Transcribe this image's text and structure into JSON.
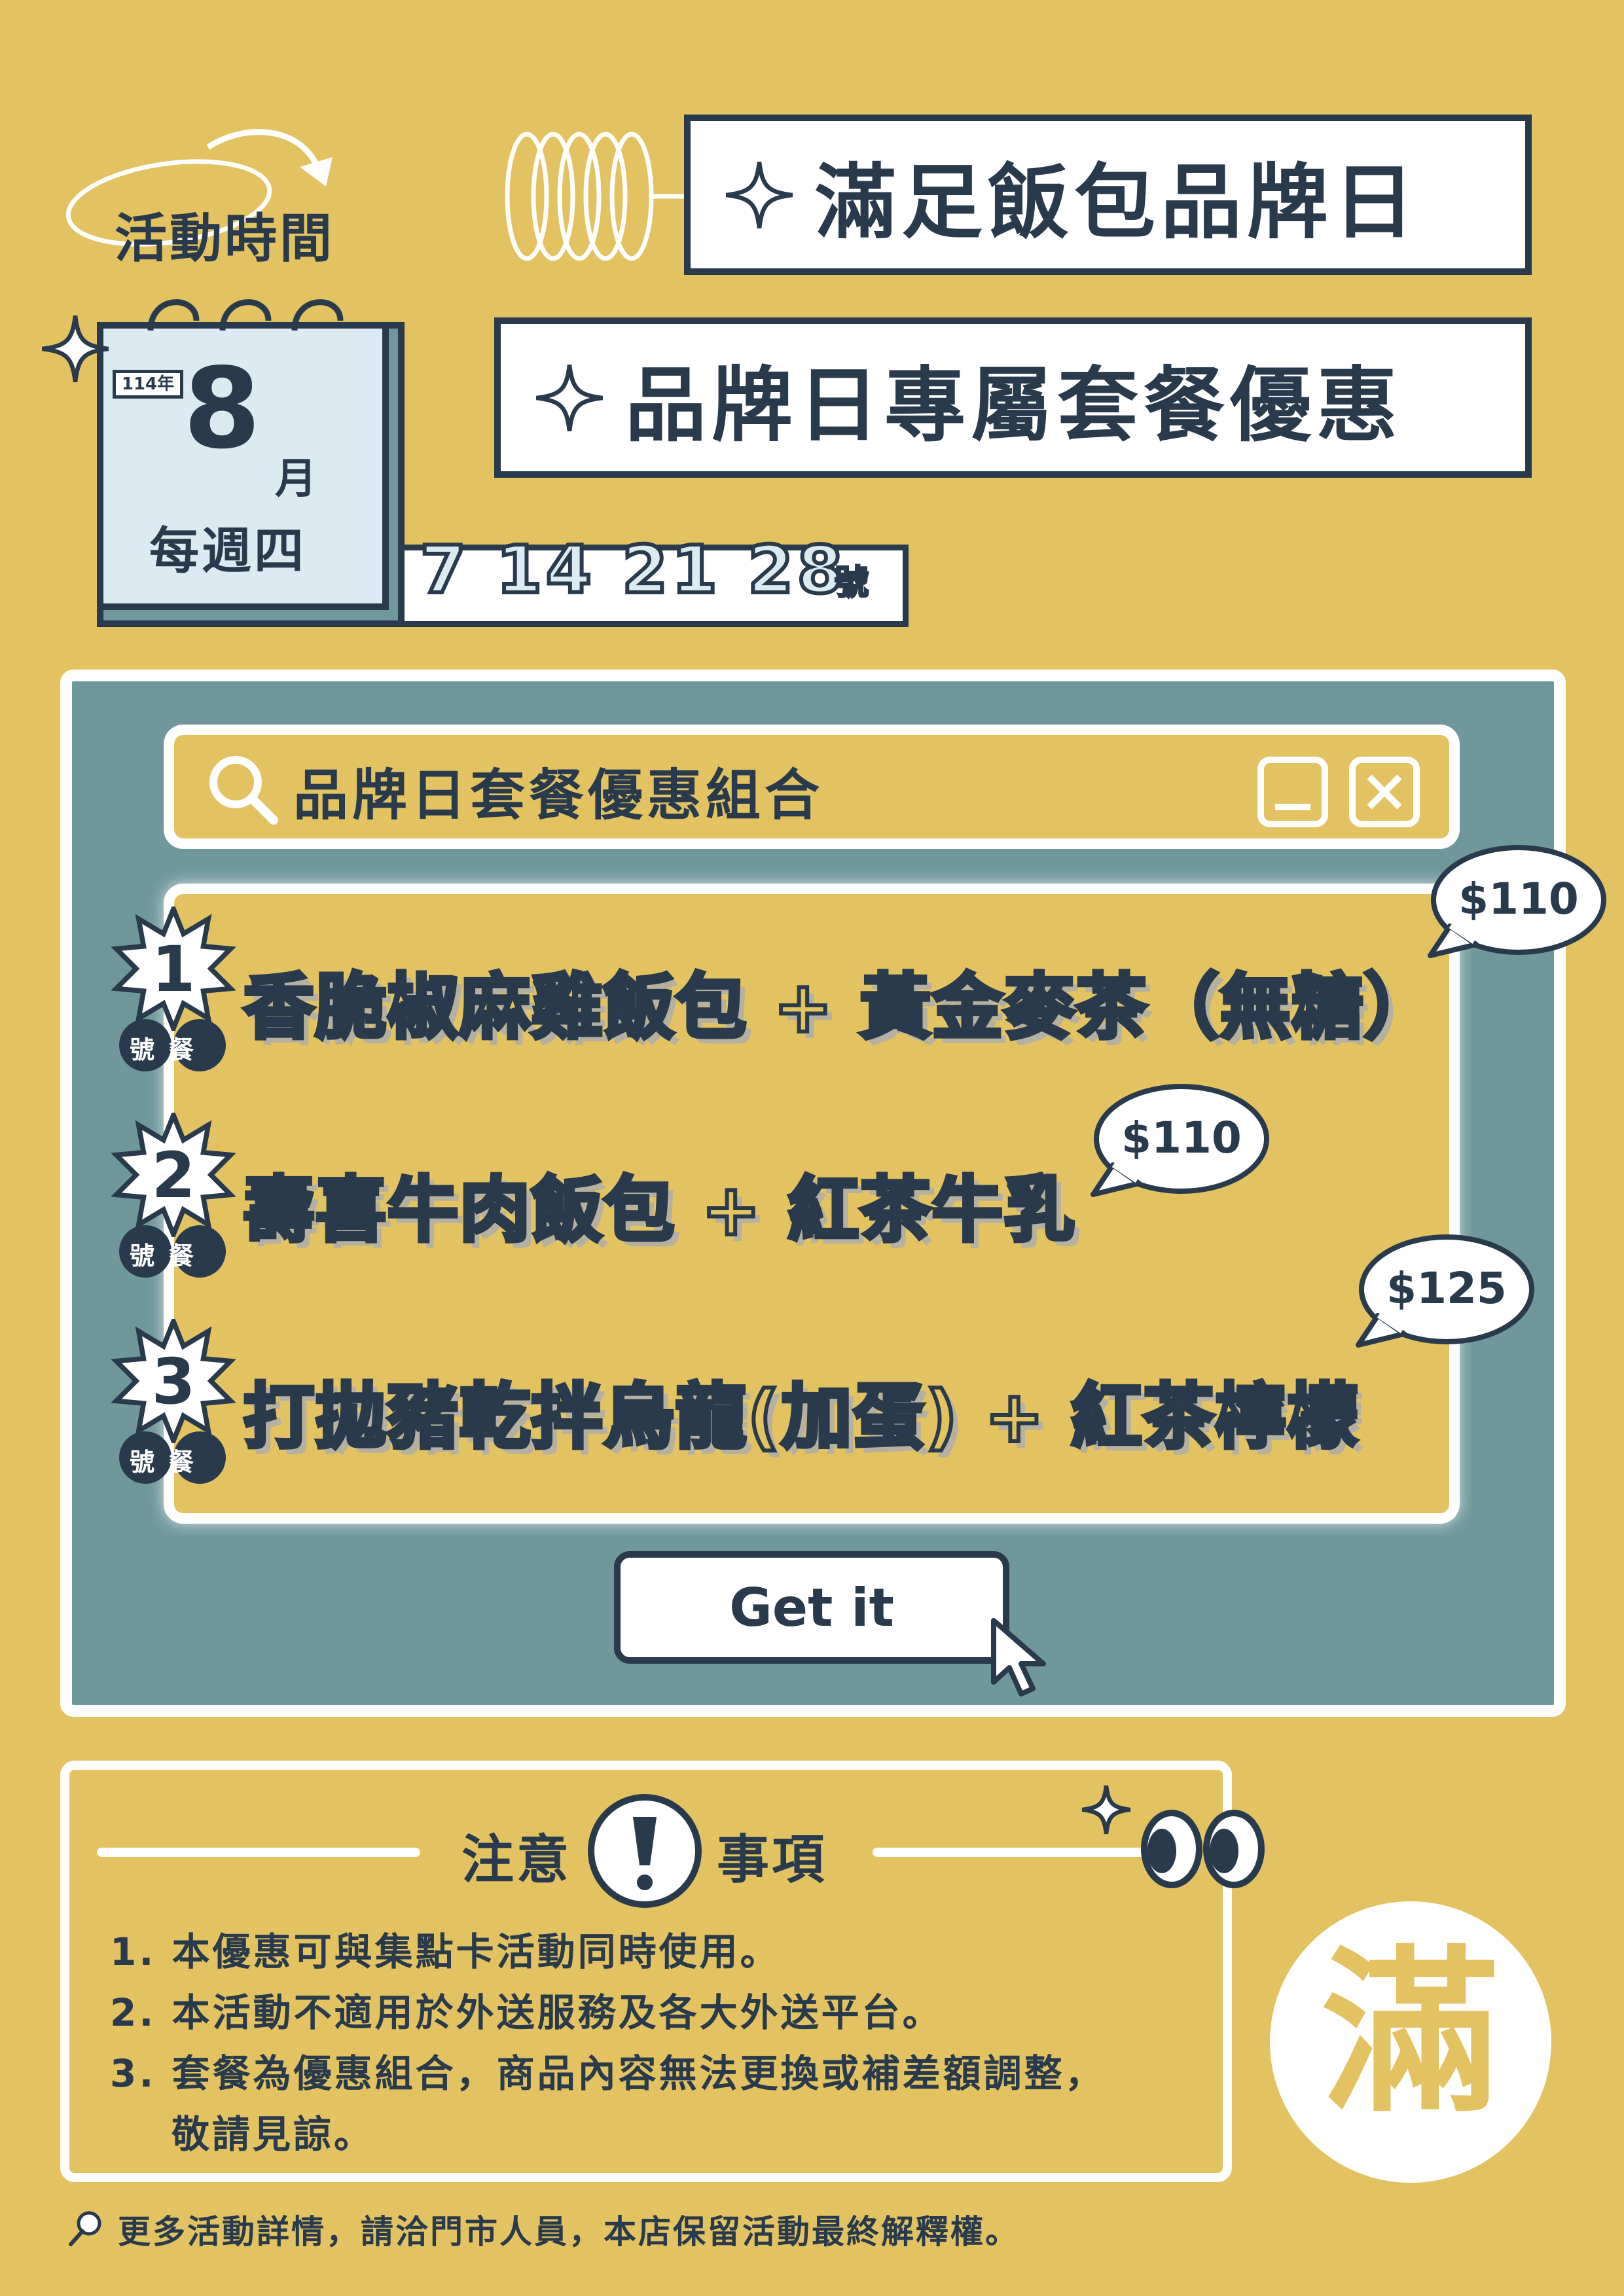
{
  "header": {
    "title_main": "滿足飯包品牌日",
    "title_sub": "品牌日專屬套餐優惠"
  },
  "event": {
    "label": "活動時間",
    "year": "114年",
    "month_number": "8",
    "month_unit": "月",
    "weekday": "每週四",
    "dates": "7 14 21 28",
    "dates_unit": "號"
  },
  "panel": {
    "search_label": "品牌日套餐優惠組合",
    "sets": [
      {
        "number": "1",
        "label": "號餐",
        "item": "香脆椒麻雞飯包 + 黃金麥茶（無糖）",
        "price": "$110"
      },
      {
        "number": "2",
        "label": "號餐",
        "item": "壽喜牛肉飯包 + 紅茶牛乳",
        "price": "$110"
      },
      {
        "number": "3",
        "label": "號餐",
        "item": "打拋豬乾拌烏龍(加蛋) + 紅茶檸檬",
        "price": "$125"
      }
    ],
    "button_label": "Get it"
  },
  "notes": {
    "heading_left": "注意",
    "heading_right": "事項",
    "items": [
      "1. 本優惠可與集點卡活動同時使用。",
      "2. 本活動不適用於外送服務及各大外送平台。",
      "3. 套餐為優惠組合，商品內容無法更換或補差額調整，",
      "敬請見諒。"
    ]
  },
  "footer": {
    "text": "更多活動詳情，請洽門市人員，本店保留活動最終解釋權。"
  },
  "logo": {
    "char": "滿"
  },
  "colors": {
    "background": "#E3C261",
    "navy": "#283A4B",
    "teal": "#6F979C",
    "white": "#FFFFFF",
    "calendar_light": "#DCEBF1"
  },
  "icons": [
    "sparkle-icon",
    "rings-icon",
    "search-icon",
    "minimize-icon",
    "close-icon",
    "cursor-icon",
    "exclamation-icon",
    "eyes-icon",
    "pin-icon"
  ]
}
